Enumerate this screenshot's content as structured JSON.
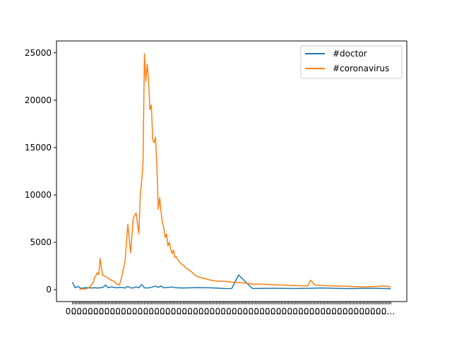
{
  "chart_data": {
    "type": "line",
    "title": "",
    "xlabel": "",
    "ylabel": "",
    "ylim": [
      -1250,
      26250
    ],
    "yticks": [
      0,
      5000,
      10000,
      15000,
      20000,
      25000
    ],
    "ytick_labels": [
      "0",
      "5000",
      "10000",
      "15000",
      "20000",
      "25000"
    ],
    "x_tick_label_sample": "0…",
    "x_tick_count": 231,
    "legend_position": "upper-right",
    "series": [
      {
        "name": "#doctor",
        "color": "#1f77b4",
        "x": [
          0,
          2,
          4,
          6,
          8,
          10,
          12,
          14,
          16,
          18,
          20,
          22,
          24,
          26,
          28,
          30,
          32,
          34,
          36,
          38,
          40,
          42,
          44,
          46,
          48,
          50,
          52,
          54,
          56,
          58,
          60,
          62,
          64,
          66,
          68,
          70,
          72,
          74,
          76,
          80,
          90,
          100,
          110,
          115,
          120,
          130,
          140,
          150,
          160,
          170,
          180,
          190,
          200,
          210,
          220,
          230
        ],
        "y": [
          800,
          200,
          350,
          150,
          180,
          220,
          200,
          190,
          210,
          180,
          200,
          250,
          500,
          200,
          300,
          250,
          200,
          230,
          220,
          180,
          350,
          200,
          180,
          300,
          200,
          550,
          200,
          190,
          220,
          300,
          380,
          250,
          400,
          200,
          230,
          260,
          300,
          220,
          200,
          180,
          220,
          200,
          130,
          120,
          1550,
          130,
          140,
          150,
          130,
          140,
          180,
          150,
          120,
          140,
          150,
          110
        ]
      },
      {
        "name": "#coronavirus",
        "color": "#ff7f0e",
        "x": [
          5,
          7,
          9,
          11,
          13,
          15,
          16,
          17,
          18,
          19,
          20,
          21,
          22,
          24,
          26,
          28,
          30,
          32,
          34,
          36,
          38,
          40,
          42,
          44,
          46,
          48,
          49,
          50,
          51,
          52,
          53,
          54,
          55,
          56,
          57,
          58,
          59,
          60,
          61,
          62,
          63,
          64,
          65,
          66,
          67,
          68,
          69,
          70,
          71,
          72,
          73,
          74,
          75,
          76,
          78,
          80,
          82,
          84,
          86,
          88,
          90,
          92,
          95,
          100,
          105,
          110,
          115,
          120,
          125,
          130,
          135,
          140,
          150,
          160,
          170,
          172,
          175,
          180,
          190,
          200,
          210,
          220,
          225,
          230
        ],
        "y": [
          50,
          100,
          80,
          150,
          350,
          800,
          1300,
          1500,
          1800,
          1600,
          3300,
          2200,
          1500,
          1400,
          1200,
          1000,
          900,
          600,
          500,
          1600,
          3000,
          6900,
          3900,
          7600,
          8100,
          5900,
          10000,
          11500,
          13300,
          24900,
          22000,
          23800,
          22100,
          19000,
          19500,
          15800,
          15500,
          16100,
          13100,
          8500,
          9700,
          8200,
          7100,
          6500,
          5500,
          5900,
          4600,
          5000,
          4300,
          3800,
          4200,
          3400,
          3500,
          3200,
          2800,
          2600,
          2300,
          2100,
          1900,
          1600,
          1400,
          1300,
          1200,
          1000,
          900,
          900,
          800,
          750,
          700,
          600,
          600,
          550,
          500,
          450,
          400,
          1000,
          500,
          450,
          400,
          350,
          300,
          350,
          400,
          300
        ]
      }
    ]
  }
}
